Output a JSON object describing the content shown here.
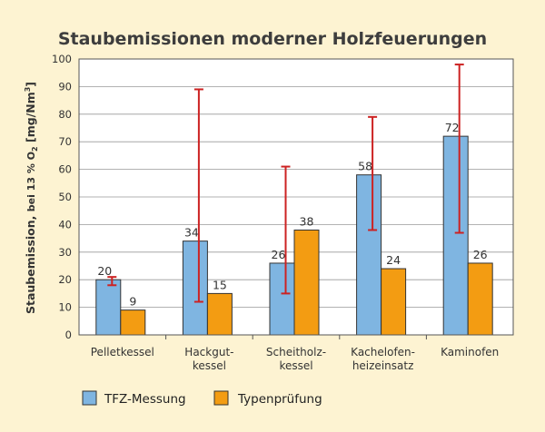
{
  "chart_data": {
    "type": "bar",
    "title": "Staubemissionen moderner Holzfeuerungen",
    "ylabel_parts": [
      "Staubemission, ",
      "bei 13 % O",
      "2",
      " [mg/Nm",
      "3",
      "]"
    ],
    "xlabel": "",
    "ylim": [
      0,
      100
    ],
    "yticks": [
      0,
      10,
      20,
      30,
      40,
      50,
      60,
      70,
      80,
      90,
      100
    ],
    "grid": true,
    "legend_position": "bottom-left",
    "categories": [
      [
        "Pelletkessel"
      ],
      [
        "Hackgut-",
        "kessel"
      ],
      [
        "Scheitholz-",
        "kessel"
      ],
      [
        "Kachelofen-",
        "heizeinsatz"
      ],
      [
        "Kaminofen"
      ]
    ],
    "series": [
      {
        "name": "TFZ-Messung",
        "color": "#7fb5e1",
        "values": [
          20,
          34,
          26,
          58,
          72
        ],
        "labels": [
          "20",
          "34",
          "26",
          "58",
          "72"
        ],
        "error_low": [
          18,
          12,
          15,
          38,
          37
        ],
        "error_high": [
          21,
          89,
          61,
          79,
          98
        ]
      },
      {
        "name": "Typenprüfung",
        "color": "#f39c12",
        "values": [
          9,
          15,
          38,
          24,
          26
        ],
        "labels": [
          "9",
          "15",
          "38",
          "24",
          "26"
        ]
      }
    ],
    "error_bar_color": "#cc2222"
  }
}
